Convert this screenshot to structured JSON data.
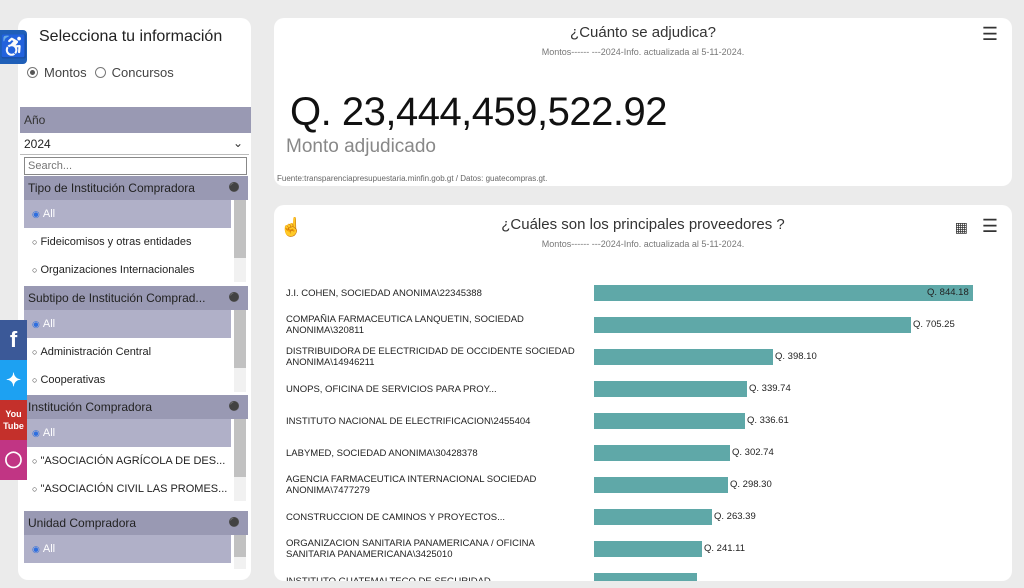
{
  "sidebar": {
    "title": "Selecciona tu información",
    "radio_options": [
      {
        "label": "Montos",
        "selected": true
      },
      {
        "label": "Concursos",
        "selected": false
      }
    ],
    "year": {
      "header": "Año",
      "value": "2024",
      "search_placeholder": "Search..."
    },
    "sections": [
      {
        "title": "Tipo de Institución Compradora",
        "options": [
          "All",
          "Fideicomisos y otras entidades",
          "Organizaciones Internacionales"
        ]
      },
      {
        "title": "Subtipo de Institución Comprad...",
        "options": [
          "All",
          "Administración Central",
          "Cooperativas"
        ]
      },
      {
        "title": "Institución Compradora",
        "options": [
          "All",
          "\"ASOCIACIÓN AGRÍCOLA DE DES...",
          "\"ASOCIACIÓN CIVIL LAS PROMES..."
        ]
      },
      {
        "title": "Unidad Compradora",
        "options": [
          "All"
        ]
      }
    ]
  },
  "social": {
    "youtube": "You Tube"
  },
  "card1": {
    "title": "¿Cuánto se adjudica?",
    "subtitle": "Montos------ ---2024-Info. actualizada al 5-11-2024.",
    "amount": "Q. 23,444,459,522.92",
    "amount_label": "Monto adjudicado",
    "source": "Fuente:transparenciapresupuestaria.minfin.gob.gt / Datos: guatecompras.gt."
  },
  "card2": {
    "title": "¿Cuáles son los principales proveedores ?",
    "subtitle": "Montos------ ---2024-Info. actualizada al 5-11-2024."
  },
  "chart_data": {
    "type": "bar",
    "title": "¿Cuáles son los principales proveedores ?",
    "orientation": "horizontal",
    "categories": [
      "J.I. COHEN, SOCIEDAD ANONIMA\\22345388",
      "COMPAÑIA FARMACEUTICA LANQUETIN, SOCIEDAD ANONIMA\\320811",
      "DISTRIBUIDORA DE ELECTRICIDAD DE OCCIDENTE SOCIEDAD ANONIMA\\14946211",
      "UNOPS, OFICINA DE SERVICIOS PARA PROY...",
      "INSTITUTO NACIONAL DE ELECTRIFICACION\\2455404",
      "LABYMED, SOCIEDAD ANONIMA\\30428378",
      "AGENCIA FARMACEUTICA INTERNACIONAL SOCIEDAD ANONIMA\\7477279",
      "CONSTRUCCION DE CAMINOS Y PROYECTOS...",
      "ORGANIZACION SANITARIA PANAMERICANA / OFICINA SANITARIA PANAMERICANA\\3425010",
      "INSTITUTO GUATEMALTECO DE SEGURIDAD..."
    ],
    "values": [
      844.18,
      705.25,
      398.1,
      339.74,
      336.61,
      302.74,
      298.3,
      263.39,
      241.11,
      230
    ],
    "value_labels": [
      "Q. 844.18",
      "Q. 705.25",
      "Q. 398.10",
      "Q. 339.74",
      "Q. 336.61",
      "Q. 302.74",
      "Q. 298.30",
      "Q. 263.39",
      "Q. 241.11",
      ""
    ],
    "xlim": [
      0,
      844.18
    ],
    "color": "#5fa8a8"
  }
}
